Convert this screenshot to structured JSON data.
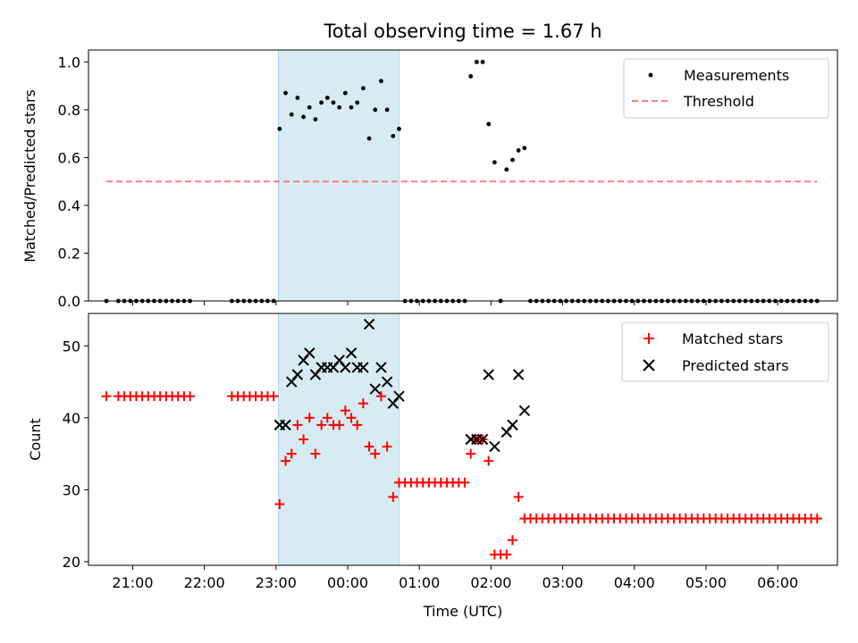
{
  "chart_data": [
    {
      "type": "scatter",
      "title": "Total observing time = 1.67 h",
      "xlabel": "",
      "ylabel": "Matched/Predicted stars",
      "xlim": [
        "20:23",
        "06:50"
      ],
      "ylim": [
        0,
        1.05
      ],
      "yticks": [
        "0.0",
        "0.2",
        "0.4",
        "0.6",
        "0.8",
        "1.0"
      ],
      "grid": false,
      "legend": "top-right",
      "highlight_span": [
        "23:02",
        "00:43"
      ],
      "series": [
        {
          "name": "Measurements",
          "kind": "scatter",
          "color": "#000000",
          "marker": "dot",
          "points": [
            [
              "20:38",
              0
            ],
            [
              "20:48",
              0
            ],
            [
              "20:53",
              0
            ],
            [
              "20:58",
              0
            ],
            [
              "21:03",
              0
            ],
            [
              "21:08",
              0
            ],
            [
              "21:13",
              0
            ],
            [
              "21:18",
              0
            ],
            [
              "21:23",
              0
            ],
            [
              "21:28",
              0
            ],
            [
              "21:33",
              0
            ],
            [
              "21:38",
              0
            ],
            [
              "21:43",
              0
            ],
            [
              "21:48",
              0
            ],
            [
              "22:23",
              0
            ],
            [
              "22:28",
              0
            ],
            [
              "22:33",
              0
            ],
            [
              "22:38",
              0
            ],
            [
              "22:43",
              0
            ],
            [
              "22:48",
              0
            ],
            [
              "22:53",
              0
            ],
            [
              "22:58",
              0
            ],
            [
              "23:03",
              0.72
            ],
            [
              "23:08",
              0.87
            ],
            [
              "23:13",
              0.78
            ],
            [
              "23:18",
              0.85
            ],
            [
              "23:23",
              0.77
            ],
            [
              "23:28",
              0.81
            ],
            [
              "23:33",
              0.76
            ],
            [
              "23:38",
              0.83
            ],
            [
              "23:43",
              0.85
            ],
            [
              "23:48",
              0.83
            ],
            [
              "23:53",
              0.81
            ],
            [
              "23:58",
              0.87
            ],
            [
              "00:03",
              0.81
            ],
            [
              "00:08",
              0.83
            ],
            [
              "00:13",
              0.89
            ],
            [
              "00:18",
              0.68
            ],
            [
              "00:23",
              0.8
            ],
            [
              "00:28",
              0.92
            ],
            [
              "00:33",
              0.8
            ],
            [
              "00:38",
              0.69
            ],
            [
              "00:43",
              0.72
            ],
            [
              "00:48",
              0
            ],
            [
              "00:53",
              0
            ],
            [
              "00:58",
              0
            ],
            [
              "01:03",
              0
            ],
            [
              "01:08",
              0
            ],
            [
              "01:13",
              0
            ],
            [
              "01:18",
              0
            ],
            [
              "01:23",
              0
            ],
            [
              "01:28",
              0
            ],
            [
              "01:33",
              0
            ],
            [
              "01:38",
              0
            ],
            [
              "01:43",
              0.94
            ],
            [
              "01:48",
              1.0
            ],
            [
              "01:53",
              1.0
            ],
            [
              "01:58",
              0.74
            ],
            [
              "02:03",
              0.58
            ],
            [
              "02:08",
              0
            ],
            [
              "02:13",
              0.55
            ],
            [
              "02:18",
              0.59
            ],
            [
              "02:23",
              0.63
            ],
            [
              "02:28",
              0.64
            ],
            [
              "02:33",
              0
            ],
            [
              "02:38",
              0
            ],
            [
              "02:43",
              0
            ],
            [
              "02:48",
              0
            ],
            [
              "02:53",
              0
            ],
            [
              "02:58",
              0
            ],
            [
              "03:03",
              0
            ],
            [
              "03:08",
              0
            ],
            [
              "03:13",
              0
            ],
            [
              "03:18",
              0
            ],
            [
              "03:23",
              0
            ],
            [
              "03:28",
              0
            ],
            [
              "03:33",
              0
            ],
            [
              "03:38",
              0
            ],
            [
              "03:43",
              0
            ],
            [
              "03:48",
              0
            ],
            [
              "03:53",
              0
            ],
            [
              "03:58",
              0
            ],
            [
              "04:03",
              0
            ],
            [
              "04:08",
              0
            ],
            [
              "04:13",
              0
            ],
            [
              "04:18",
              0
            ],
            [
              "04:23",
              0
            ],
            [
              "04:28",
              0
            ],
            [
              "04:33",
              0
            ],
            [
              "04:38",
              0
            ],
            [
              "04:43",
              0
            ],
            [
              "04:48",
              0
            ],
            [
              "04:53",
              0
            ],
            [
              "04:58",
              0
            ],
            [
              "05:03",
              0
            ],
            [
              "05:08",
              0
            ],
            [
              "05:13",
              0
            ],
            [
              "05:18",
              0
            ],
            [
              "05:23",
              0
            ],
            [
              "05:28",
              0
            ],
            [
              "05:33",
              0
            ],
            [
              "05:38",
              0
            ],
            [
              "05:43",
              0
            ],
            [
              "05:48",
              0
            ],
            [
              "05:53",
              0
            ],
            [
              "05:58",
              0
            ],
            [
              "06:03",
              0
            ],
            [
              "06:08",
              0
            ],
            [
              "06:13",
              0
            ],
            [
              "06:18",
              0
            ],
            [
              "06:23",
              0
            ],
            [
              "06:28",
              0
            ],
            [
              "06:33",
              0
            ]
          ]
        },
        {
          "name": "Threshold",
          "kind": "line",
          "color": "#ff7f7f",
          "dashed": true,
          "x": [
            "20:38",
            "06:33"
          ],
          "y": [
            0.5,
            0.5
          ]
        }
      ]
    },
    {
      "type": "scatter",
      "title": "",
      "xlabel": "Time (UTC)",
      "ylabel": "Count",
      "xlim": [
        "20:23",
        "06:50"
      ],
      "ylim": [
        19.5,
        54.5
      ],
      "yticks": [
        "20",
        "30",
        "40",
        "50"
      ],
      "xticks": [
        "21:00",
        "22:00",
        "23:00",
        "00:00",
        "01:00",
        "02:00",
        "03:00",
        "04:00",
        "05:00",
        "06:00"
      ],
      "grid": false,
      "legend": "top-right",
      "highlight_span": [
        "23:02",
        "00:43"
      ],
      "series": [
        {
          "name": "Matched stars",
          "kind": "scatter",
          "color": "#ff0000",
          "marker": "plus",
          "points": [
            [
              "20:38",
              43
            ],
            [
              "20:48",
              43
            ],
            [
              "20:53",
              43
            ],
            [
              "20:58",
              43
            ],
            [
              "21:03",
              43
            ],
            [
              "21:08",
              43
            ],
            [
              "21:13",
              43
            ],
            [
              "21:18",
              43
            ],
            [
              "21:23",
              43
            ],
            [
              "21:28",
              43
            ],
            [
              "21:33",
              43
            ],
            [
              "21:38",
              43
            ],
            [
              "21:43",
              43
            ],
            [
              "21:48",
              43
            ],
            [
              "22:23",
              43
            ],
            [
              "22:28",
              43
            ],
            [
              "22:33",
              43
            ],
            [
              "22:38",
              43
            ],
            [
              "22:43",
              43
            ],
            [
              "22:48",
              43
            ],
            [
              "22:53",
              43
            ],
            [
              "22:58",
              43
            ],
            [
              "23:03",
              28
            ],
            [
              "23:08",
              34
            ],
            [
              "23:13",
              35
            ],
            [
              "23:18",
              39
            ],
            [
              "23:23",
              37
            ],
            [
              "23:28",
              40
            ],
            [
              "23:33",
              35
            ],
            [
              "23:38",
              39
            ],
            [
              "23:43",
              40
            ],
            [
              "23:48",
              39
            ],
            [
              "23:53",
              39
            ],
            [
              "23:58",
              41
            ],
            [
              "00:03",
              40
            ],
            [
              "00:08",
              39
            ],
            [
              "00:13",
              42
            ],
            [
              "00:18",
              36
            ],
            [
              "00:23",
              35
            ],
            [
              "00:28",
              43
            ],
            [
              "00:33",
              36
            ],
            [
              "00:38",
              29
            ],
            [
              "00:43",
              31
            ],
            [
              "00:48",
              31
            ],
            [
              "00:53",
              31
            ],
            [
              "00:58",
              31
            ],
            [
              "01:03",
              31
            ],
            [
              "01:08",
              31
            ],
            [
              "01:13",
              31
            ],
            [
              "01:18",
              31
            ],
            [
              "01:23",
              31
            ],
            [
              "01:28",
              31
            ],
            [
              "01:33",
              31
            ],
            [
              "01:38",
              31
            ],
            [
              "01:43",
              35
            ],
            [
              "01:48",
              37
            ],
            [
              "01:53",
              37
            ],
            [
              "01:58",
              34
            ],
            [
              "02:03",
              21
            ],
            [
              "02:08",
              21
            ],
            [
              "02:13",
              21
            ],
            [
              "02:18",
              23
            ],
            [
              "02:23",
              29
            ],
            [
              "02:28",
              26
            ],
            [
              "02:33",
              26
            ],
            [
              "02:38",
              26
            ],
            [
              "02:43",
              26
            ],
            [
              "02:48",
              26
            ],
            [
              "02:53",
              26
            ],
            [
              "02:58",
              26
            ],
            [
              "03:03",
              26
            ],
            [
              "03:08",
              26
            ],
            [
              "03:13",
              26
            ],
            [
              "03:18",
              26
            ],
            [
              "03:23",
              26
            ],
            [
              "03:28",
              26
            ],
            [
              "03:33",
              26
            ],
            [
              "03:38",
              26
            ],
            [
              "03:43",
              26
            ],
            [
              "03:48",
              26
            ],
            [
              "03:53",
              26
            ],
            [
              "03:58",
              26
            ],
            [
              "04:03",
              26
            ],
            [
              "04:08",
              26
            ],
            [
              "04:13",
              26
            ],
            [
              "04:18",
              26
            ],
            [
              "04:23",
              26
            ],
            [
              "04:28",
              26
            ],
            [
              "04:33",
              26
            ],
            [
              "04:38",
              26
            ],
            [
              "04:43",
              26
            ],
            [
              "04:48",
              26
            ],
            [
              "04:53",
              26
            ],
            [
              "04:58",
              26
            ],
            [
              "05:03",
              26
            ],
            [
              "05:08",
              26
            ],
            [
              "05:13",
              26
            ],
            [
              "05:18",
              26
            ],
            [
              "05:23",
              26
            ],
            [
              "05:28",
              26
            ],
            [
              "05:33",
              26
            ],
            [
              "05:38",
              26
            ],
            [
              "05:43",
              26
            ],
            [
              "05:48",
              26
            ],
            [
              "05:53",
              26
            ],
            [
              "05:58",
              26
            ],
            [
              "06:03",
              26
            ],
            [
              "06:08",
              26
            ],
            [
              "06:13",
              26
            ],
            [
              "06:18",
              26
            ],
            [
              "06:23",
              26
            ],
            [
              "06:28",
              26
            ],
            [
              "06:33",
              26
            ]
          ]
        },
        {
          "name": "Predicted stars",
          "kind": "scatter",
          "color": "#000000",
          "marker": "x",
          "points": [
            [
              "23:03",
              39
            ],
            [
              "23:08",
              39
            ],
            [
              "23:13",
              45
            ],
            [
              "23:18",
              46
            ],
            [
              "23:23",
              48
            ],
            [
              "23:28",
              49
            ],
            [
              "23:33",
              46
            ],
            [
              "23:38",
              47
            ],
            [
              "23:43",
              47
            ],
            [
              "23:48",
              47
            ],
            [
              "23:53",
              48
            ],
            [
              "23:58",
              47
            ],
            [
              "00:03",
              49
            ],
            [
              "00:08",
              47
            ],
            [
              "00:13",
              47
            ],
            [
              "00:18",
              53
            ],
            [
              "00:23",
              44
            ],
            [
              "00:28",
              47
            ],
            [
              "00:33",
              45
            ],
            [
              "00:38",
              42
            ],
            [
              "00:43",
              43
            ],
            [
              "01:43",
              37
            ],
            [
              "01:48",
              37
            ],
            [
              "01:53",
              37
            ],
            [
              "01:58",
              46
            ],
            [
              "02:03",
              36
            ],
            [
              "02:13",
              38
            ],
            [
              "02:18",
              39
            ],
            [
              "02:23",
              46
            ],
            [
              "02:28",
              41
            ]
          ]
        }
      ]
    }
  ]
}
